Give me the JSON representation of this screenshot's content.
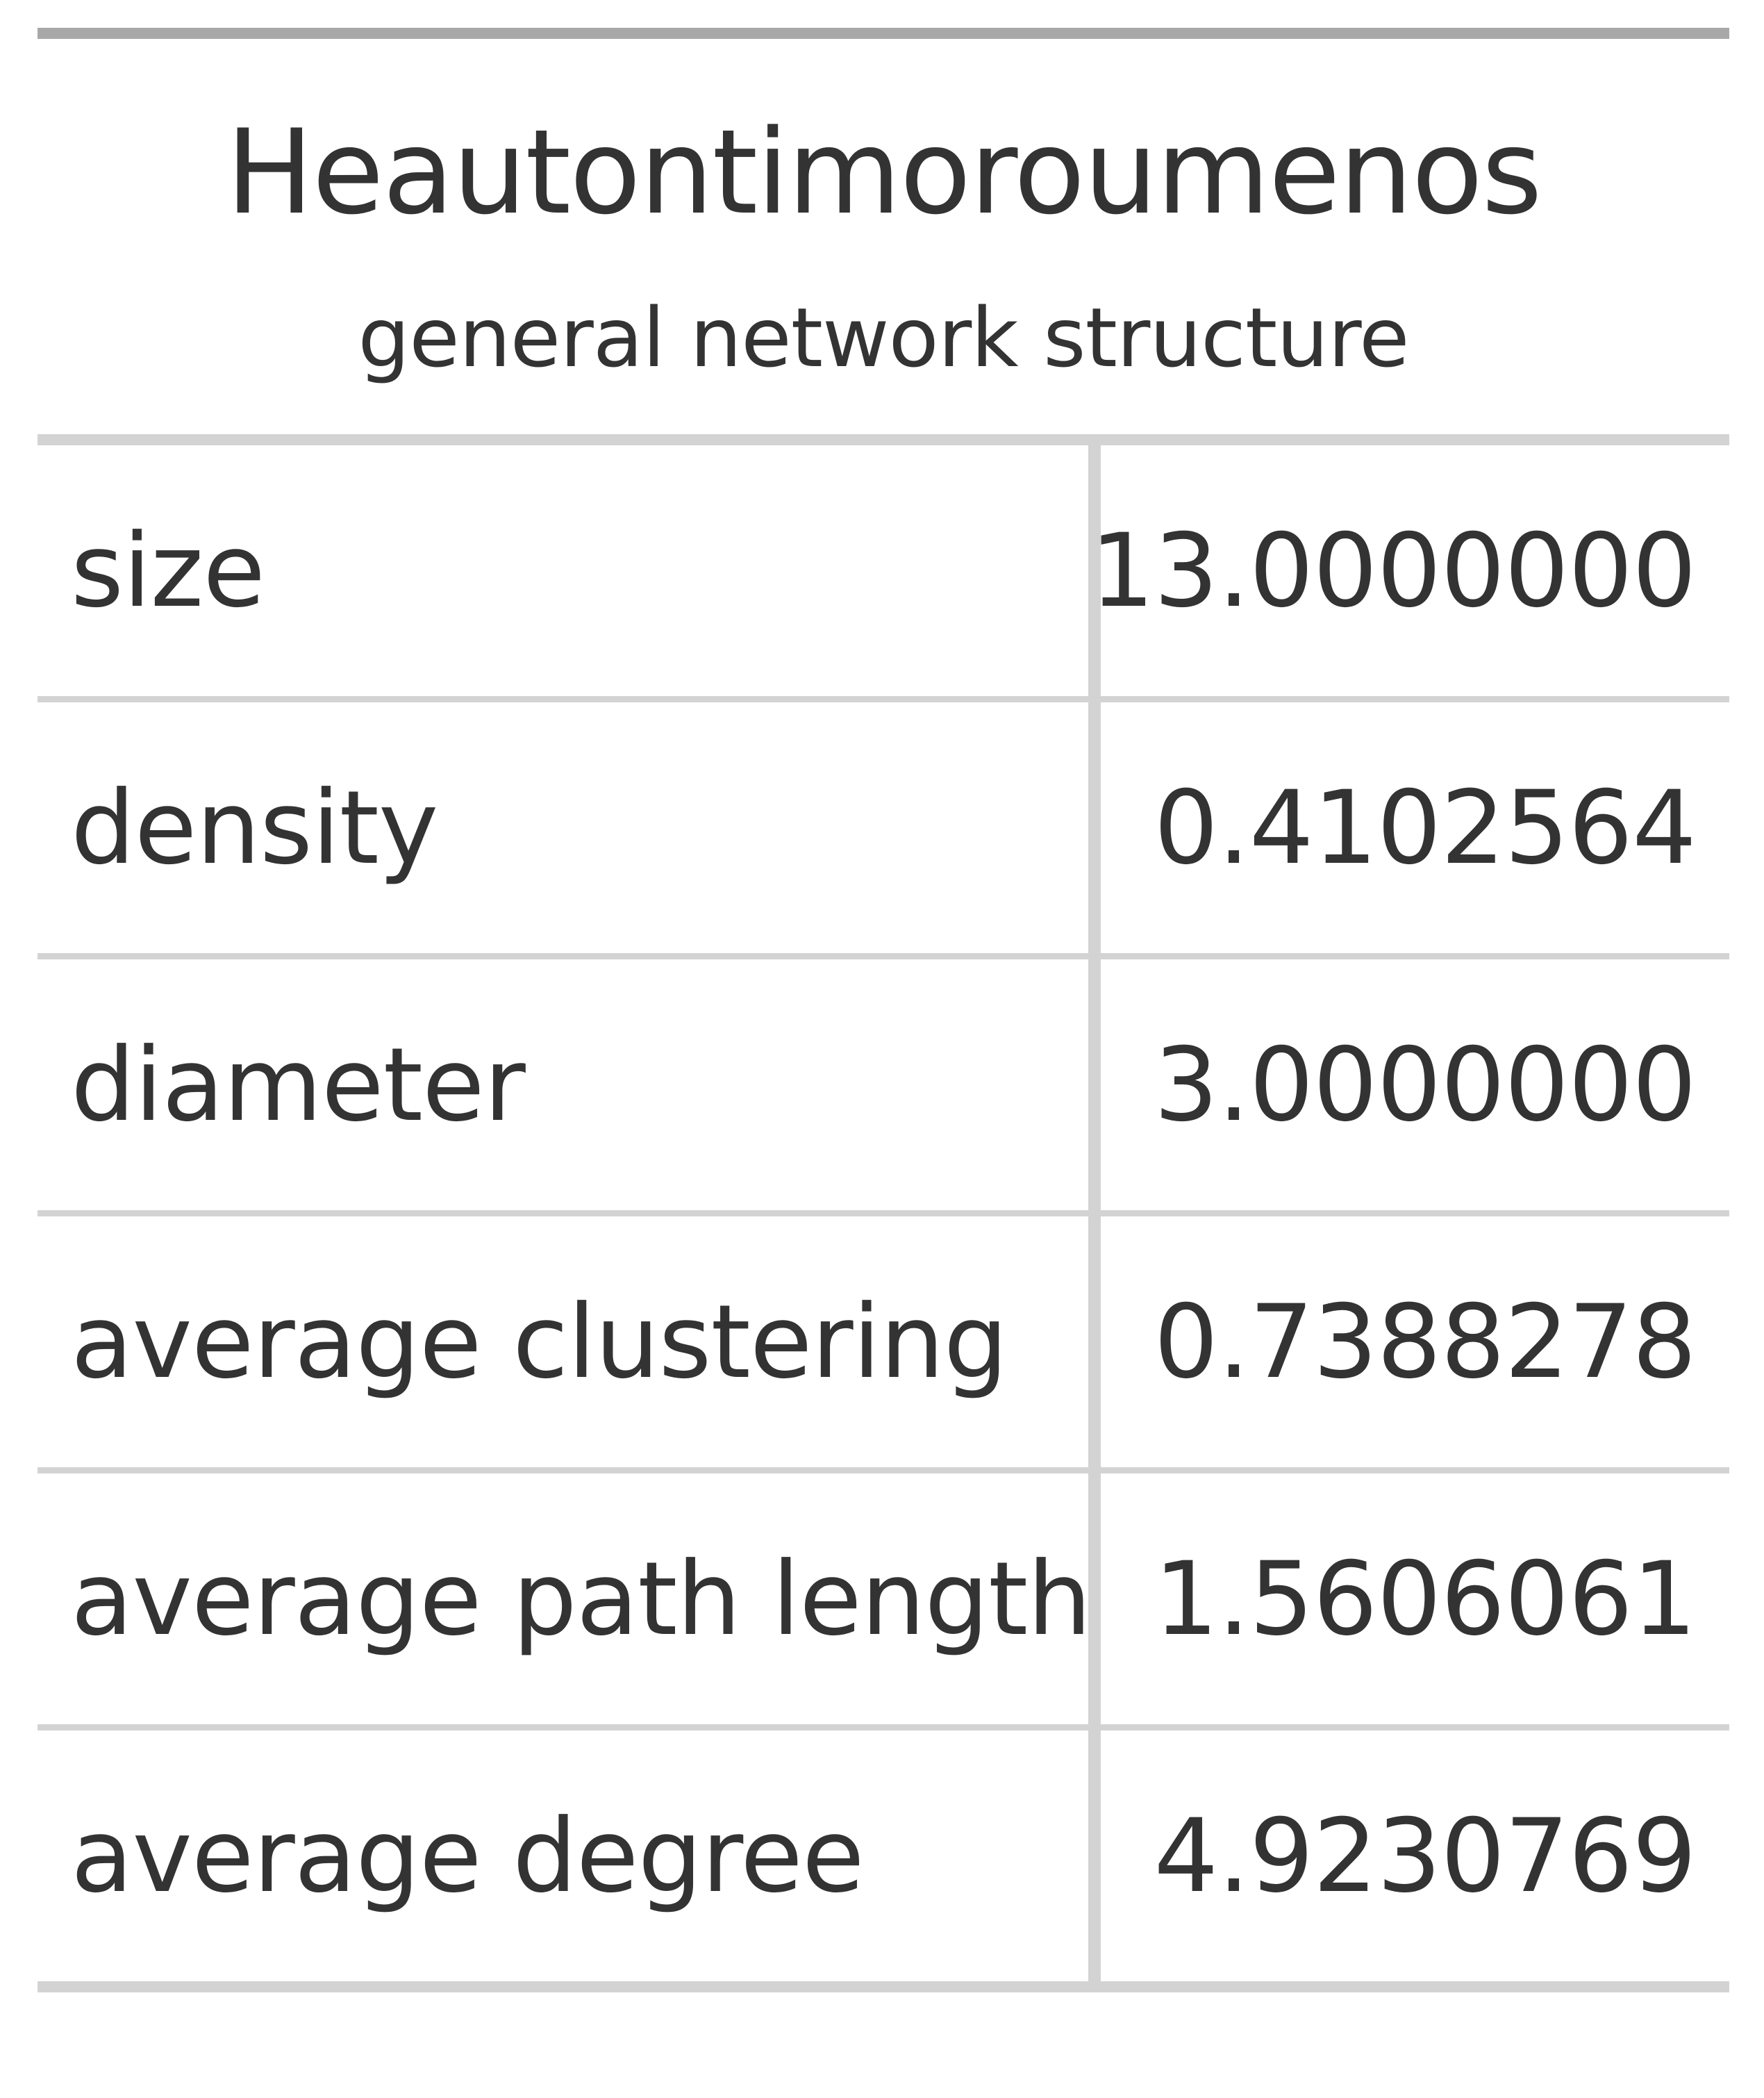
{
  "table": {
    "title": "Heautontimoroumenos",
    "subtitle": "general network structure",
    "rows": [
      {
        "label": "size",
        "value": "13.0000000"
      },
      {
        "label": "density",
        "value": "0.4102564"
      },
      {
        "label": "diameter",
        "value": "3.0000000"
      },
      {
        "label": "average clustering",
        "value": "0.7388278"
      },
      {
        "label": "average path length",
        "value": "1.5606061"
      },
      {
        "label": "average degree",
        "value": "4.9230769"
      }
    ]
  },
  "colors": {
    "text": "#333333",
    "top_rule": "#a8a8a8",
    "grid": "#d3d3d3",
    "background": "#ffffff"
  }
}
